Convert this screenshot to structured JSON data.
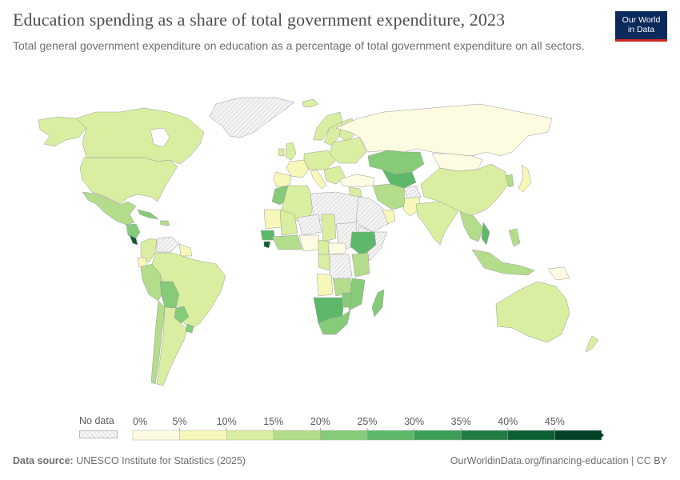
{
  "header": {
    "title": "Education spending as a share of total government expenditure, 2023",
    "subtitle": "Total general government expenditure on education as a percentage of total government expenditure on all sectors."
  },
  "logo": {
    "line1": "Our World",
    "line2": "in Data"
  },
  "legend": {
    "no_data_label": "No data",
    "ticks": [
      "0%",
      "5%",
      "10%",
      "15%",
      "20%",
      "25%",
      "30%",
      "35%",
      "40%",
      "45%"
    ],
    "colors": [
      "#fdfbe1",
      "#f6f7b8",
      "#d9eea0",
      "#b3dd8b",
      "#86cb78",
      "#5db96a",
      "#3b9e56",
      "#1f7d44",
      "#0b5f33",
      "#034226"
    ]
  },
  "map": {
    "no_data_color": "#ececec",
    "border_color": "#9a9a9a"
  },
  "footer": {
    "source_label": "Data source:",
    "source_text": "UNESCO Institute for Statistics (2025)",
    "link_text": "OurWorldinData.org/financing-education | CC BY"
  }
}
